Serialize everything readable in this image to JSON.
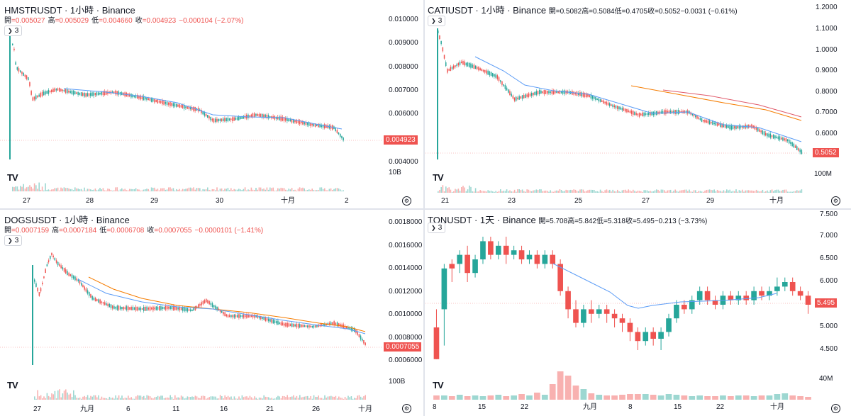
{
  "panels": [
    {
      "id": "hmst",
      "title": "HMSTRUSDT · 1小時 · Binance",
      "ohlc": [
        {
          "label": "開",
          "value": "=0.005027"
        },
        {
          "label": "高",
          "value": "=0.005029"
        },
        {
          "label": "低",
          "value": "=0.004660"
        },
        {
          "label": "收",
          "value": "=0.004923"
        },
        {
          "label": "",
          "value": "−0.000104 (−2.07%)"
        }
      ],
      "indicator_count": "3",
      "price_ticks": [
        "0.010000",
        "0.009000",
        "0.008000",
        "0.007000",
        "0.006000",
        "0.004000"
      ],
      "last_price": "0.004923",
      "volume_label": "10B",
      "time_ticks": [
        "27",
        "28",
        "29",
        "30",
        "十月",
        "2"
      ]
    },
    {
      "id": "cati",
      "title": "CATIUSDT · 1小時 · Binance",
      "ohlc": [
        {
          "label": "開",
          "value": "=0.5082"
        },
        {
          "label": "高",
          "value": "=0.5084"
        },
        {
          "label": "低",
          "value": "=0.4705"
        },
        {
          "label": "收",
          "value": "=0.5052"
        },
        {
          "label": "",
          "value": "−0.0031 (−0.61%)"
        }
      ],
      "indicator_count": "3",
      "price_ticks": [
        "1.2000",
        "1.1000",
        "1.0000",
        "0.9000",
        "0.8000",
        "0.7000",
        "0.6000"
      ],
      "last_price": "0.5052",
      "volume_label": "100M",
      "time_ticks": [
        "21",
        "23",
        "25",
        "27",
        "29",
        "十月"
      ]
    },
    {
      "id": "dogs",
      "title": "DOGSUSDT · 1小時 · Binance",
      "ohlc": [
        {
          "label": "開",
          "value": "=0.0007159"
        },
        {
          "label": "高",
          "value": "=0.0007184"
        },
        {
          "label": "低",
          "value": "=0.0006708"
        },
        {
          "label": "收",
          "value": "=0.0007055"
        },
        {
          "label": "",
          "value": "−0.0000101 (−1.41%)"
        }
      ],
      "indicator_count": "3",
      "price_ticks": [
        "0.0018000",
        "0.0016000",
        "0.0014000",
        "0.0012000",
        "0.0010000",
        "0.0008000",
        "0.0006000"
      ],
      "last_price": "0.0007055",
      "volume_label": "100B",
      "time_ticks": [
        "27",
        "九月",
        "6",
        "11",
        "16",
        "21",
        "26",
        "十月"
      ]
    },
    {
      "id": "ton",
      "title": "TONUSDT · 1天 · Binance",
      "ohlc": [
        {
          "label": "開",
          "value": "=5.708"
        },
        {
          "label": "高",
          "value": "=5.842"
        },
        {
          "label": "低",
          "value": "=5.318"
        },
        {
          "label": "收",
          "value": "=5.495"
        },
        {
          "label": "",
          "value": "−0.213 (−3.73%)"
        }
      ],
      "indicator_count": "3",
      "price_ticks": [
        "7.500",
        "7.000",
        "6.500",
        "6.000",
        "5.000",
        "4.500"
      ],
      "last_price": "5.495",
      "volume_label": "40M",
      "time_ticks": [
        "8",
        "15",
        "22",
        "九月",
        "8",
        "15",
        "22",
        "十月"
      ]
    }
  ],
  "colors": {
    "up": "#26a69a",
    "down": "#ef5350",
    "ma1": "#5b9cf6",
    "ma2": "#f57c00",
    "ma3": "#e05a6a"
  },
  "icons": {
    "logo": "tradingview-logo-icon",
    "settings": "gear-icon",
    "chevron": "chevron-down-icon"
  }
}
